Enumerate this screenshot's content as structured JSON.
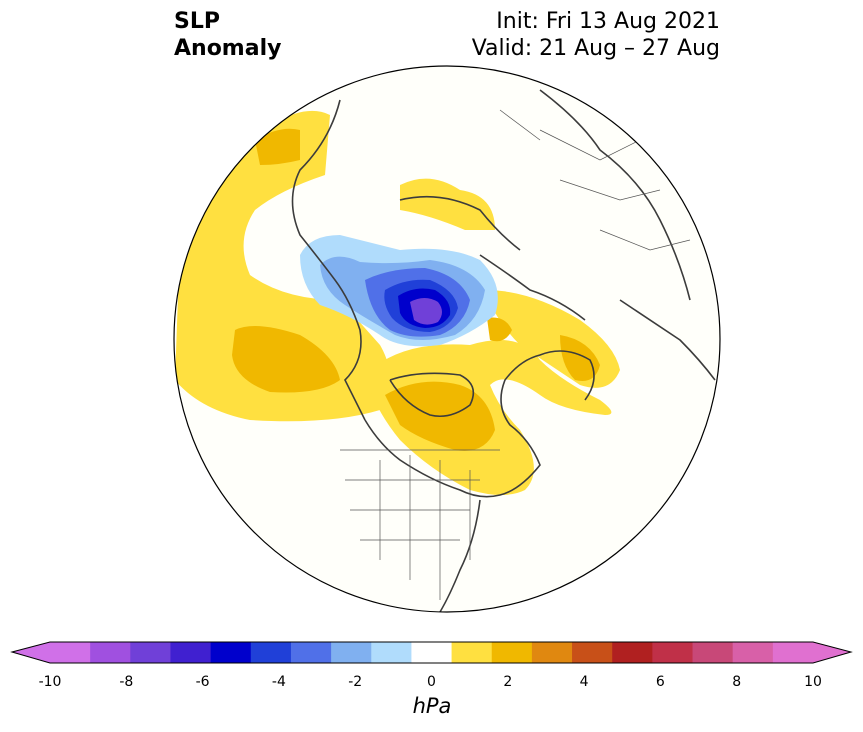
{
  "title": {
    "left_line1": "SLP",
    "left_line2": "Anomaly",
    "right_line1": "Init: Fri 13 Aug 2021",
    "right_line2": "Valid: 21 Aug – 27 Aug"
  },
  "colorbar": {
    "unit": "hPa",
    "ticks": [
      "-10",
      "-8",
      "-6",
      "-4",
      "-2",
      "0",
      "2",
      "4",
      "6",
      "8",
      "10"
    ],
    "levels": [
      -10,
      -9,
      -8,
      -7,
      -6,
      -5,
      -4,
      -3,
      -2,
      -1,
      1,
      2,
      3,
      4,
      5,
      6,
      7,
      8,
      9,
      10
    ],
    "colors": [
      "#d070e8",
      "#a050e0",
      "#7040d8",
      "#4020d0",
      "#0000cc",
      "#2040d8",
      "#5070e8",
      "#80b0f0",
      "#b0dcfc",
      "#ffffff",
      "#ffe040",
      "#f0b800",
      "#e08810",
      "#c85018",
      "#b02020",
      "#c03048",
      "#c84878",
      "#d860a8",
      "#e070d0"
    ],
    "under_color": "#d070e8",
    "over_color": "#e070d0"
  },
  "map": {
    "projection": "north polar stereographic",
    "region": "Northern Hemisphere, centered on North America / Arctic",
    "features": [
      "coastlines",
      "country borders",
      "US state boundaries"
    ]
  }
}
